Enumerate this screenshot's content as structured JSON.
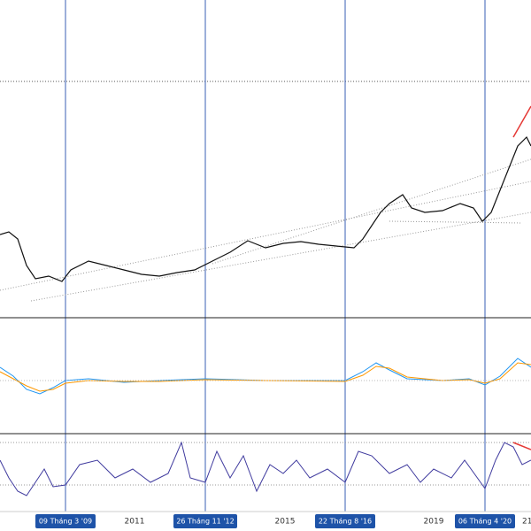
{
  "x_axis": {
    "labels": [
      "2011",
      "2015",
      "2019",
      "21"
    ],
    "highlighted": [
      "09 Tháng 3 '09",
      "26 Tháng 11 '12",
      "22 Tháng 8 '16",
      "06 Tháng 4 '20"
    ]
  }
}
